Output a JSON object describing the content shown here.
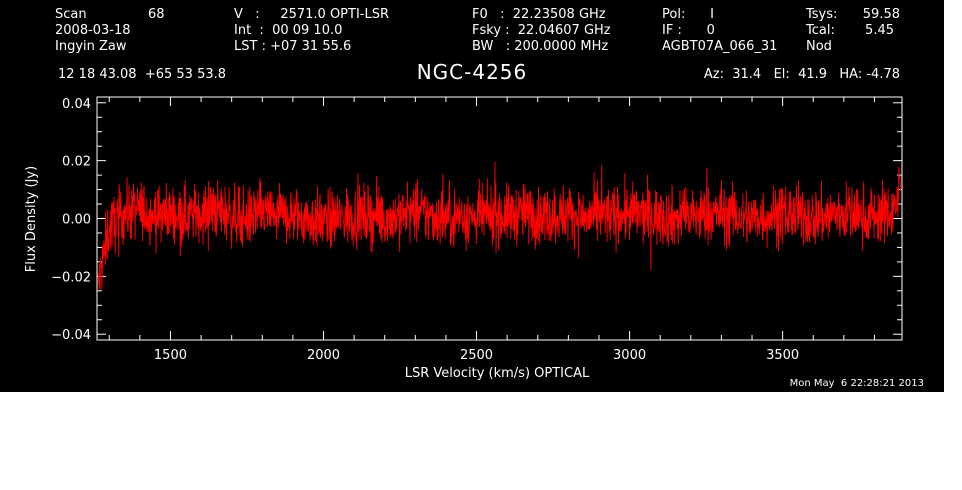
{
  "header": {
    "scan_label": "Scan",
    "scan_value": "68",
    "date": "2008-03-18",
    "observer": "Ingyin Zaw",
    "coords": "12 18 43.08  +65 53 53.8",
    "v_line": "V   :     2571.0 OPTI-LSR",
    "int_line": "Int  :  00 09 10.0",
    "lst_line": "LST : +07 31 55.6",
    "f0_line": "F0   :  22.23508 GHz",
    "fsky_line": "Fsky :  22.04607 GHz",
    "bw_line": "BW   : 200.0000 MHz",
    "pol_line": "Pol:      I",
    "if_line": "IF :      0",
    "project": "AGBT07A_066_31",
    "tsys_label": "Tsys:",
    "tsys_value": "59.58",
    "tcal_label": "Tcal:",
    "tcal_value": "5.45",
    "mode": "Nod",
    "azelha": "Az:  31.4   El:  41.9   HA: -4.78"
  },
  "timestamp": "Mon May  6 22:28:21 2013",
  "colors": {
    "background": "#000000",
    "axes": "#ffffff",
    "trace": "#ff0000"
  },
  "chart_data": {
    "type": "line",
    "title": "NGC-4256",
    "xlabel": "LSR Velocity (km/s) OPTICAL",
    "ylabel": "Flux Density (Jy)",
    "xlim": [
      1260,
      3890
    ],
    "ylim": [
      -0.042,
      0.042
    ],
    "xticks": [
      1500,
      2000,
      2500,
      3000,
      3500
    ],
    "xtick_labels": [
      "1500",
      "2000",
      "2500",
      "3000",
      "3500"
    ],
    "yticks": [
      -0.04,
      -0.02,
      0.0,
      0.02,
      0.04
    ],
    "ytick_labels": [
      "−0.04",
      "−0.02",
      "0.00",
      "0.02",
      "0.04"
    ],
    "grid": false,
    "legend": "none",
    "series": [
      {
        "x": [
          1263,
          1270,
          1280,
          1290,
          1300,
          1320,
          1350,
          1400,
          1450,
          1500,
          1550,
          1600,
          1650,
          1700,
          1750,
          1800,
          1850,
          1900,
          1950,
          2000,
          2050,
          2100,
          2150,
          2200,
          2250,
          2300,
          2350,
          2400,
          2450,
          2500,
          2550,
          2600,
          2650,
          2700,
          2750,
          2800,
          2850,
          2900,
          2950,
          3000,
          3050,
          3100,
          3150,
          3200,
          3250,
          3300,
          3350,
          3400,
          3450,
          3500,
          3550,
          3600,
          3650,
          3700,
          3750,
          3800,
          3850,
          3870,
          3885
        ],
        "y": [
          -0.024,
          -0.02,
          -0.014,
          -0.008,
          -0.003,
          -0.001,
          0.002,
          0.003,
          0.001,
          0.002,
          0.001,
          0.002,
          0.003,
          0.001,
          0.0,
          0.002,
          0.001,
          0.001,
          0.0,
          -0.001,
          0.0,
          0.001,
          0.001,
          0.0,
          0.001,
          0.002,
          0.001,
          0.0,
          0.001,
          0.0,
          0.001,
          0.001,
          0.002,
          0.001,
          0.001,
          0.002,
          0.0,
          0.001,
          0.001,
          0.002,
          0.001,
          0.001,
          0.0,
          0.001,
          0.001,
          0.002,
          0.001,
          0.0,
          0.001,
          0.002,
          0.001,
          0.0,
          0.001,
          0.002,
          0.001,
          0.001,
          0.002,
          0.005,
          0.011
        ],
        "noise_rms": 0.005
      }
    ]
  }
}
